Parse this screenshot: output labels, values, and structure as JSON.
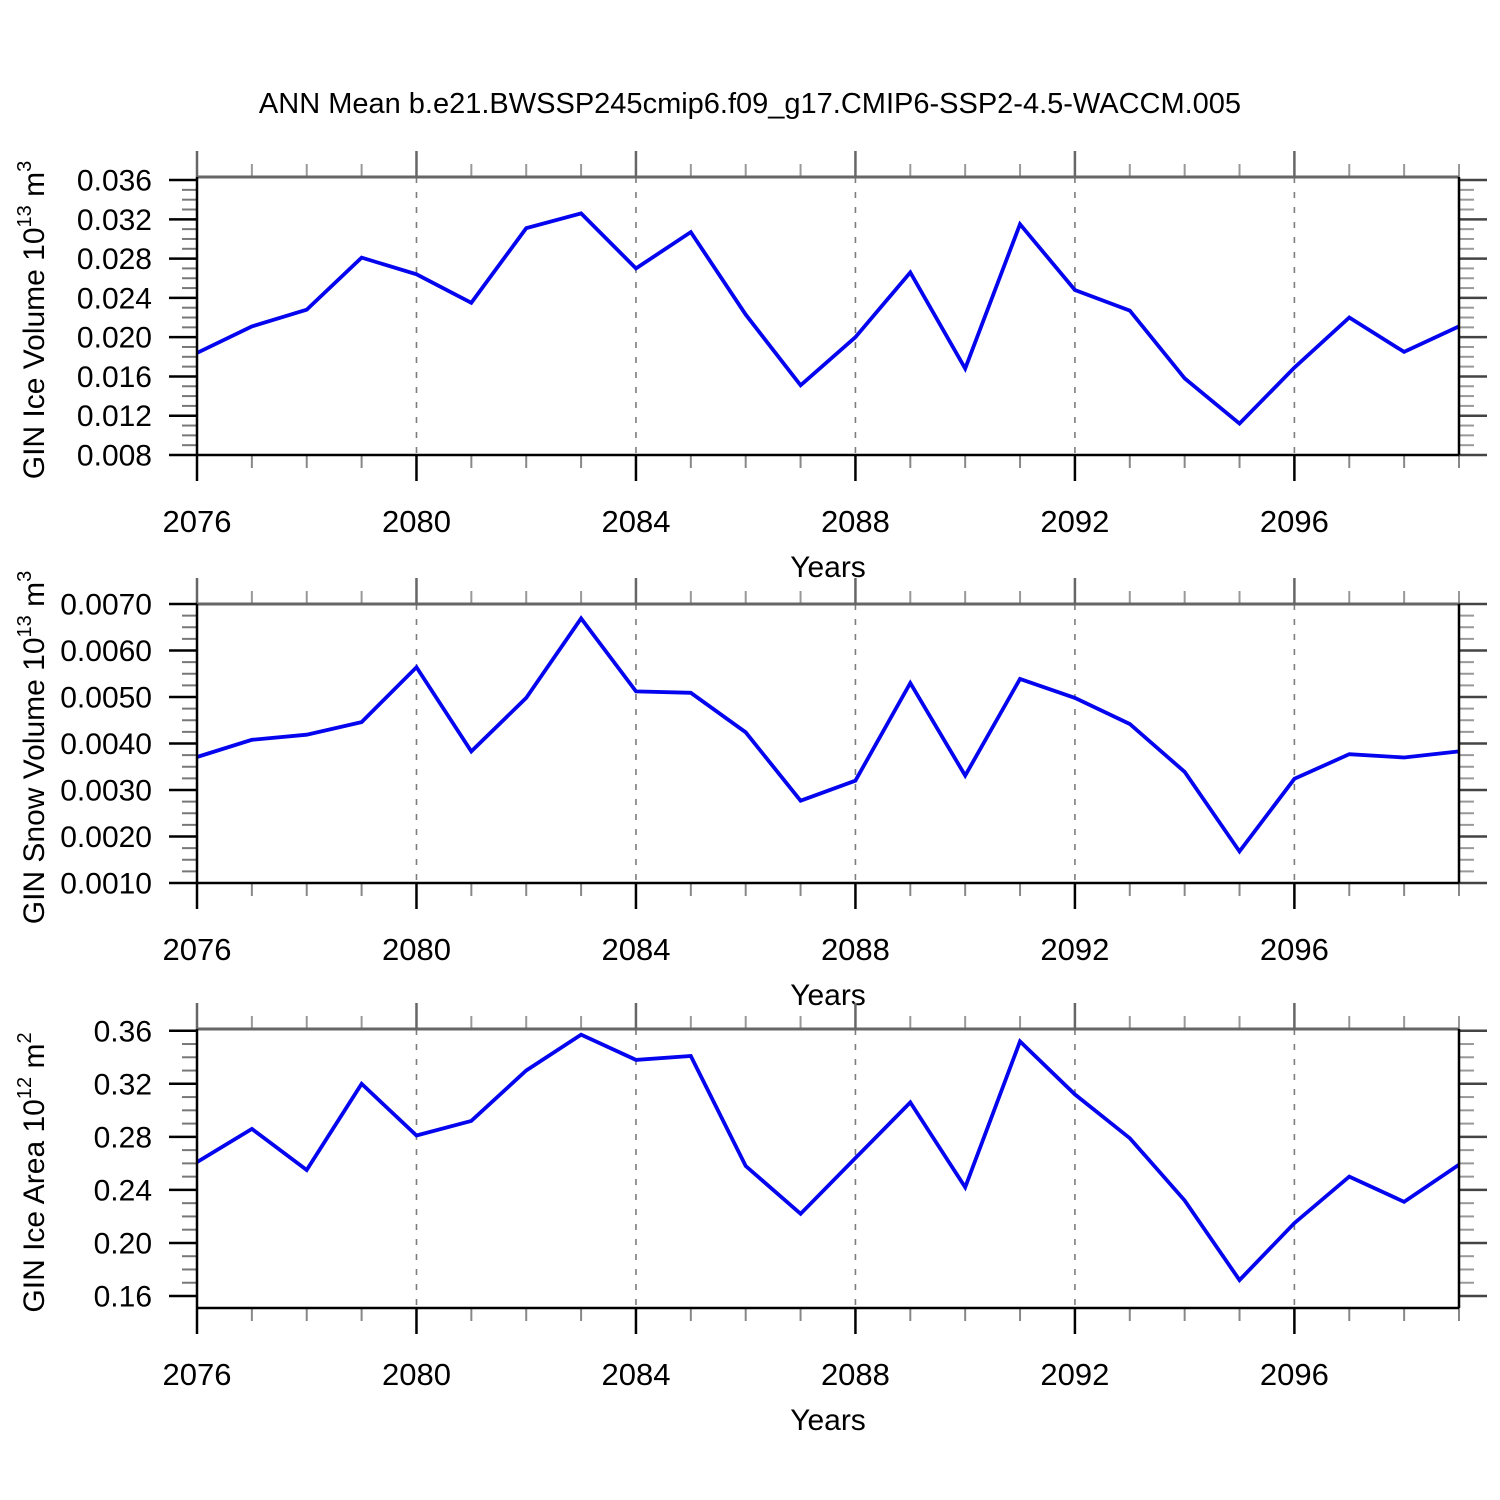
{
  "title": "ANN Mean b.e21.BWSSP245cmip6.f09_g17.CMIP6-SSP2-4.5-WACCM.005",
  "colors": {
    "line": "#0404ee",
    "grid": "#7d7d7d",
    "axis": "#000000",
    "axis_top": "#666666",
    "tick_minor": "#888888",
    "text": "#000000",
    "background": "#ffffff"
  },
  "chart_data": [
    {
      "type": "line",
      "name": "ice-volume",
      "ylabel": {
        "base": "GIN Ice Volume 10",
        "exp": "13",
        "mid": " m",
        "exp2": "3"
      },
      "ylabel_plain": "GIN Ice Volume 10^13 m^3",
      "xlabel": "Years",
      "x": [
        2076,
        2077,
        2078,
        2079,
        2080,
        2081,
        2082,
        2083,
        2084,
        2085,
        2086,
        2087,
        2088,
        2089,
        2090,
        2091,
        2092,
        2093,
        2094,
        2095,
        2096,
        2097,
        2098,
        2099
      ],
      "values": [
        0.0184,
        0.0211,
        0.0228,
        0.0281,
        0.0264,
        0.0235,
        0.0311,
        0.0326,
        0.027,
        0.0307,
        0.0223,
        0.0151,
        0.02,
        0.0266,
        0.0168,
        0.0315,
        0.0248,
        0.0227,
        0.0158,
        0.0112,
        0.0169,
        0.022,
        0.0185,
        0.0211
      ],
      "ylim": [
        0.008,
        0.03631
      ],
      "ytick_values": [
        0.008,
        0.012,
        0.016,
        0.02,
        0.024,
        0.028,
        0.032,
        0.036
      ],
      "ytick_labels": [
        "0.008",
        "0.012",
        "0.016",
        "0.020",
        "0.024",
        "0.028",
        "0.032",
        "0.036"
      ],
      "yminor_step": 0.001,
      "xtick_major": [
        2076,
        2080,
        2084,
        2088,
        2092,
        2096
      ],
      "xtick_labels": [
        "2076",
        "2080",
        "2084",
        "2088",
        "2092",
        "2096"
      ],
      "gridline_years": [
        2080,
        2084,
        2088,
        2092,
        2096
      ]
    },
    {
      "type": "line",
      "name": "snow-volume",
      "ylabel": {
        "base": "GIN Snow Volume 10",
        "exp": "13",
        "mid": " m",
        "exp2": "3"
      },
      "ylabel_plain": "GIN Snow Volume 10^13 m^3",
      "xlabel": "Years",
      "x": [
        2076,
        2077,
        2078,
        2079,
        2080,
        2081,
        2082,
        2083,
        2084,
        2085,
        2086,
        2087,
        2088,
        2089,
        2090,
        2091,
        2092,
        2093,
        2094,
        2095,
        2096,
        2097,
        2098,
        2099
      ],
      "values": [
        0.00371,
        0.00408,
        0.00419,
        0.00446,
        0.00564,
        0.00383,
        0.00498,
        0.00669,
        0.00512,
        0.00509,
        0.00424,
        0.00277,
        0.0032,
        0.0053,
        0.00331,
        0.00539,
        0.00498,
        0.00442,
        0.00339,
        0.00168,
        0.00324,
        0.00377,
        0.0037,
        0.00383
      ],
      "ylim": [
        0.001,
        0.007
      ],
      "ytick_values": [
        0.001,
        0.002,
        0.003,
        0.004,
        0.005,
        0.006,
        0.007
      ],
      "ytick_labels": [
        "0.0010",
        "0.0020",
        "0.0030",
        "0.0040",
        "0.0050",
        "0.0060",
        "0.0070"
      ],
      "yminor_step": 0.00025,
      "xtick_major": [
        2076,
        2080,
        2084,
        2088,
        2092,
        2096
      ],
      "xtick_labels": [
        "2076",
        "2080",
        "2084",
        "2088",
        "2092",
        "2096"
      ],
      "gridline_years": [
        2080,
        2084,
        2088,
        2092,
        2096
      ]
    },
    {
      "type": "line",
      "name": "ice-area",
      "ylabel": {
        "base": "GIN Ice Area 10",
        "exp": "12",
        "mid": " m",
        "exp2": "2"
      },
      "ylabel_plain": "GIN Ice Area 10^12 m^2",
      "xlabel": "Years",
      "x": [
        2076,
        2077,
        2078,
        2079,
        2080,
        2081,
        2082,
        2083,
        2084,
        2085,
        2086,
        2087,
        2088,
        2089,
        2090,
        2091,
        2092,
        2093,
        2094,
        2095,
        2096,
        2097,
        2098,
        2099
      ],
      "values": [
        0.261,
        0.286,
        0.255,
        0.32,
        0.281,
        0.292,
        0.33,
        0.357,
        0.338,
        0.341,
        0.258,
        0.222,
        0.264,
        0.306,
        0.242,
        0.352,
        0.312,
        0.279,
        0.232,
        0.172,
        0.215,
        0.25,
        0.231,
        0.259
      ],
      "ylim": [
        0.15095,
        0.36133
      ],
      "ytick_values": [
        0.16,
        0.2,
        0.24,
        0.28,
        0.32,
        0.36
      ],
      "ytick_labels": [
        "0.16",
        "0.20",
        "0.24",
        "0.28",
        "0.32",
        "0.36"
      ],
      "yminor_step": 0.01,
      "xtick_major": [
        2076,
        2080,
        2084,
        2088,
        2092,
        2096
      ],
      "xtick_labels": [
        "2076",
        "2080",
        "2084",
        "2088",
        "2092",
        "2096"
      ],
      "gridline_years": [
        2080,
        2084,
        2088,
        2092,
        2096
      ]
    }
  ],
  "x_domain": [
    2076,
    2099
  ]
}
